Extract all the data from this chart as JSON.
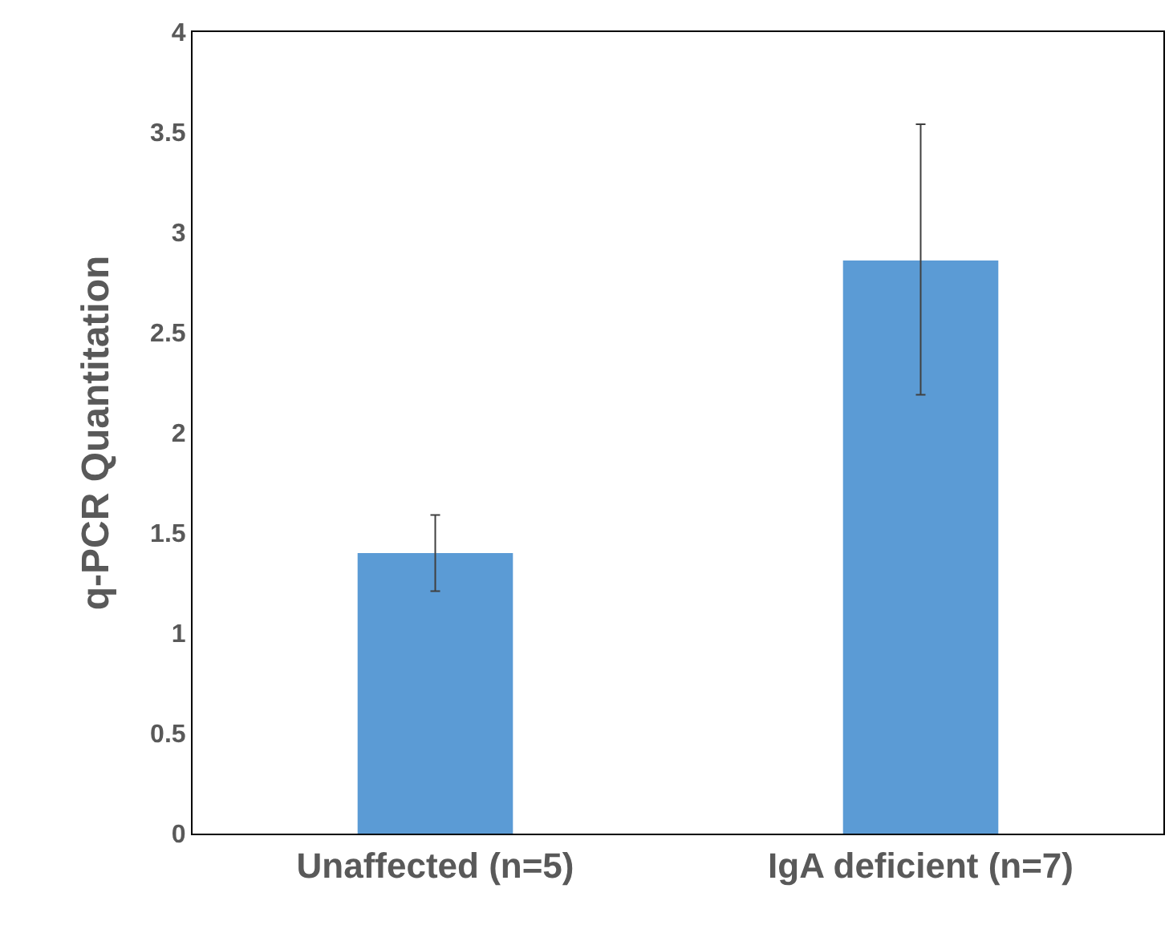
{
  "chart_data": {
    "type": "bar",
    "ylabel": "q-PCR Quantitation",
    "categories": [
      "Unaffected (n=5)",
      "IgA deficient (n=7)"
    ],
    "values": [
      1.4,
      2.86
    ],
    "errors": [
      [
        1.21,
        1.59
      ],
      [
        2.19,
        3.54
      ]
    ],
    "color": "#5b9bd5",
    "ylim": [
      0,
      4
    ],
    "yticks": [
      0,
      0.5,
      1,
      1.5,
      2,
      2.5,
      3,
      3.5,
      4
    ],
    "grid": false,
    "legend": false
  }
}
